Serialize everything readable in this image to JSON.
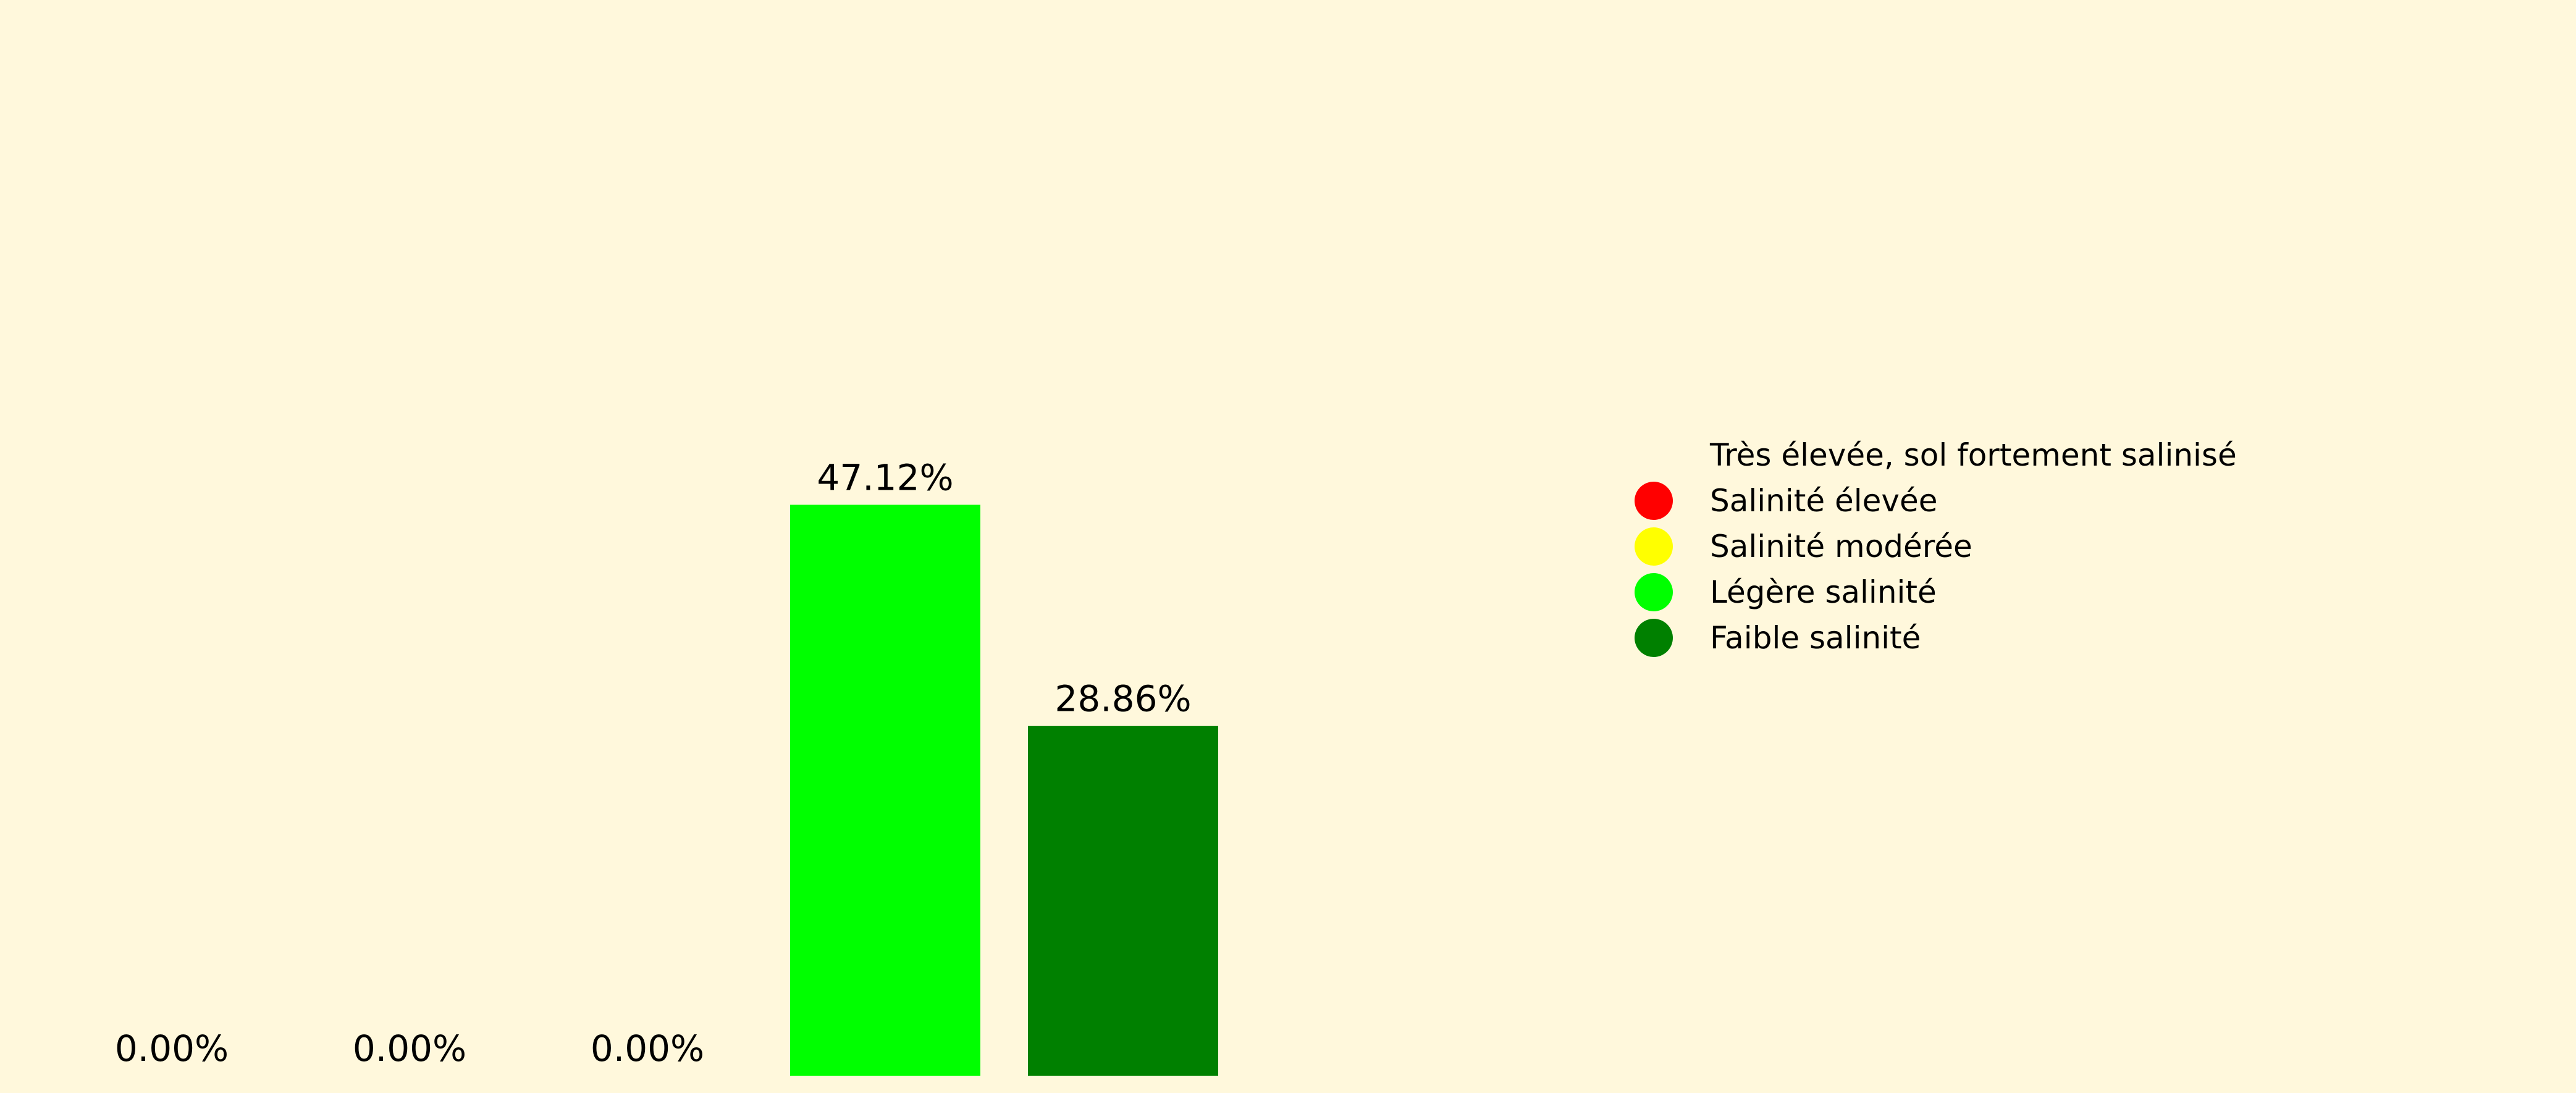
{
  "chart_data": {
    "type": "bar",
    "categories": [
      "Très élevée, sol fortement salinisé",
      "Salinité élevée",
      "Salinité modérée",
      "Légère salinité",
      "Faible salinité"
    ],
    "values": [
      0.0,
      0.0,
      0.0,
      47.12,
      28.86
    ],
    "value_labels": [
      "0.00%",
      "0.00%",
      "0.00%",
      "47.12%",
      "28.86%"
    ],
    "bar_colors": [
      "#FF0000",
      "#FFFF00",
      "#00FF00",
      "#00FF00",
      "#008000"
    ],
    "ylim": [
      0,
      87
    ],
    "axes_visible": false,
    "grid": false,
    "legend_position": "right"
  },
  "legend": {
    "items": [
      {
        "label": "Très élevée, sol fortement salinisé",
        "color": ""
      },
      {
        "label": "Salinité élevée",
        "color": "#FF0000"
      },
      {
        "label": "Salinité modérée",
        "color": "#FFFF00"
      },
      {
        "label": "Légère salinité",
        "color": "#00FF00"
      },
      {
        "label": "Faible salinité",
        "color": "#008000"
      }
    ]
  },
  "colors": {
    "background": "#FFF8DC",
    "text": "#000000"
  }
}
